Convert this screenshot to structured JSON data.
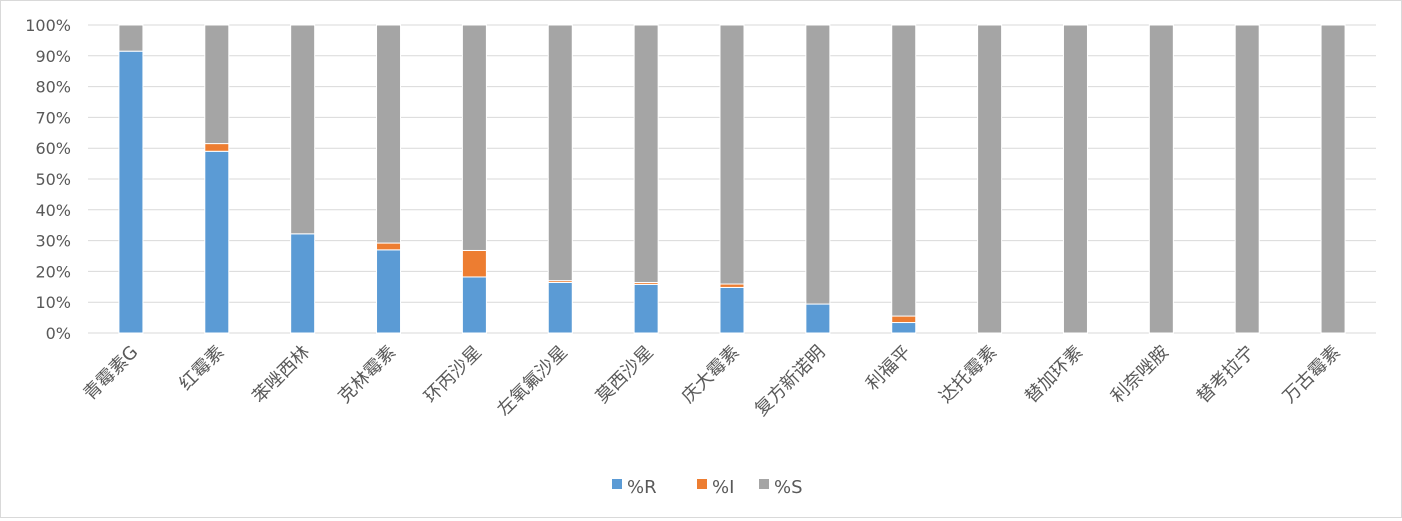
{
  "chart_data": {
    "type": "bar",
    "stacked": true,
    "percent_stacked": true,
    "categories": [
      "青霉素G",
      "红霉素",
      "苯唑西林",
      "克林霉素",
      "环丙沙星",
      "左氧氟沙星",
      "莫西沙星",
      "庆大霉素",
      "复方新诺明",
      "利福平",
      "达托霉素",
      "替加环素",
      "利奈唑胺",
      "替考拉宁",
      "万古霉素"
    ],
    "series": [
      {
        "name": "%R",
        "color": "#5b9bd5",
        "values": [
          91.5,
          59,
          32.2,
          27,
          18.2,
          16.4,
          15.8,
          14.8,
          9.4,
          3.4,
          0,
          0,
          0,
          0,
          0
        ]
      },
      {
        "name": "%I",
        "color": "#ed7d31",
        "values": [
          0,
          2.5,
          0,
          2.2,
          8.6,
          0.6,
          0.6,
          1.1,
          0,
          2.1,
          0,
          0,
          0,
          0,
          0
        ]
      },
      {
        "name": "%S",
        "color": "#a5a5a5",
        "values": [
          8.5,
          38.5,
          67.8,
          70.8,
          73.2,
          83,
          83.6,
          84.1,
          90.6,
          94.5,
          100,
          100,
          100,
          100,
          100
        ]
      }
    ],
    "yticks": [
      "0%",
      "10%",
      "20%",
      "30%",
      "40%",
      "50%",
      "60%",
      "70%",
      "80%",
      "90%",
      "100%"
    ],
    "ylim": [
      0,
      100
    ],
    "grid": true,
    "legend": "bottom",
    "title": "",
    "xlabel": "",
    "ylabel": ""
  }
}
